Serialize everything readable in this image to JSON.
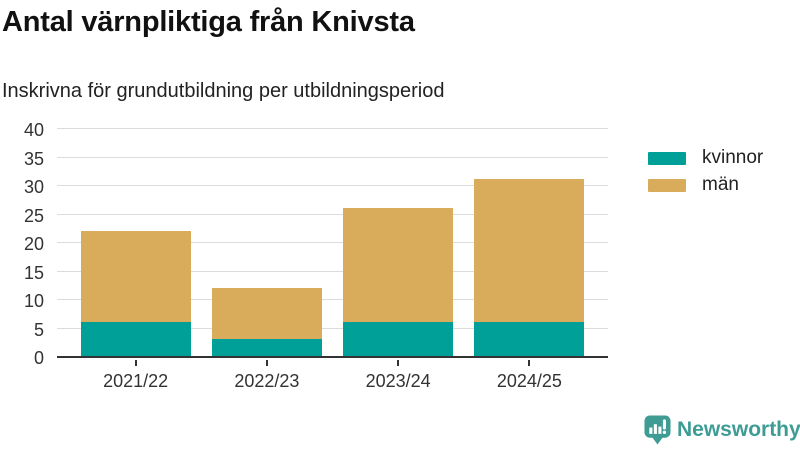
{
  "header": {
    "title": "Antal värnpliktiga från Knivsta",
    "subtitle": "Inskrivna för grundutbildning per utbildningsperiod"
  },
  "chart_data": {
    "type": "bar",
    "stacked": true,
    "title": "Antal värnpliktiga från Knivsta",
    "subtitle": "Inskrivna för grundutbildning per utbildningsperiod",
    "categories": [
      "2021/22",
      "2022/23",
      "2023/24",
      "2024/25"
    ],
    "series": [
      {
        "name": "kvinnor",
        "color": "#00A099",
        "values": [
          6,
          3,
          6,
          6
        ]
      },
      {
        "name": "män",
        "color": "#D9AC5C",
        "values": [
          16,
          9,
          20,
          25
        ]
      }
    ],
    "stack_totals": [
      22,
      12,
      26,
      31
    ],
    "xlabel": "",
    "ylabel": "",
    "ylim": [
      0,
      40
    ],
    "ytick_step": 5,
    "ytick_labels": [
      "0",
      "5",
      "10",
      "15",
      "20",
      "25",
      "30",
      "35",
      "40"
    ],
    "grid": "horizontal",
    "legend_position": "right-top",
    "axis_color": "#333333",
    "gridline_color": "#dcdcdc"
  },
  "branding": {
    "logo_text": "Newsworthy",
    "logo_color": "#3e9c95"
  }
}
